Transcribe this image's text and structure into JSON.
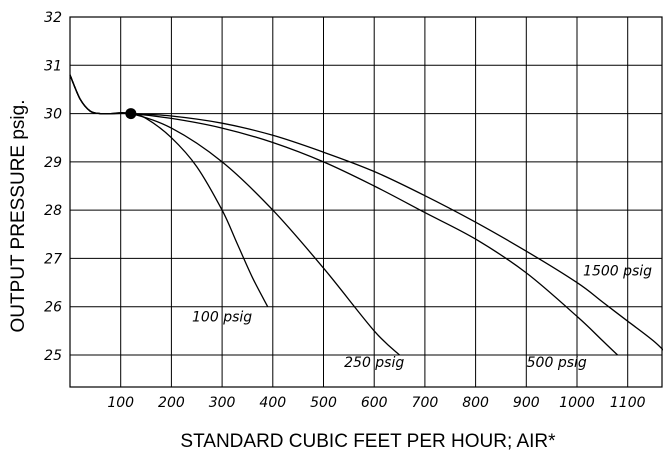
{
  "chart_data": {
    "type": "line",
    "title": "",
    "xlabel": "STANDARD CUBIC FEET PER HOUR; AIR*",
    "ylabel": "OUTPUT PRESSURE psig.",
    "xlim": [
      0,
      1200
    ],
    "ylim": [
      24.5,
      32
    ],
    "x_ticks": [
      "100",
      "200",
      "300",
      "400",
      "500",
      "600",
      "700",
      "800",
      "900",
      "1000",
      "1100"
    ],
    "y_ticks": [
      "25",
      "26",
      "27",
      "28",
      "29",
      "30",
      "31",
      "32"
    ],
    "grid": true,
    "set_point": {
      "x": 120,
      "y": 30
    },
    "series": [
      {
        "name": "100 psig",
        "x": [
          0,
          20,
          40,
          60,
          80,
          120,
          150,
          200,
          250,
          300,
          330,
          360,
          390
        ],
        "y": [
          30.8,
          30.3,
          30.05,
          30.0,
          30.0,
          30.0,
          29.9,
          29.5,
          28.9,
          28.0,
          27.3,
          26.6,
          26.0
        ]
      },
      {
        "name": "250 psig",
        "x": [
          0,
          20,
          40,
          60,
          80,
          120,
          200,
          300,
          400,
          500,
          600,
          650
        ],
        "y": [
          30.8,
          30.3,
          30.05,
          30.0,
          30.0,
          30.0,
          29.7,
          29.0,
          28.0,
          26.8,
          25.5,
          25.0
        ]
      },
      {
        "name": "500 psig",
        "x": [
          0,
          20,
          40,
          60,
          80,
          120,
          200,
          300,
          400,
          500,
          600,
          700,
          800,
          900,
          1000,
          1050,
          1080
        ],
        "y": [
          30.8,
          30.3,
          30.05,
          30.0,
          30.0,
          30.0,
          29.9,
          29.7,
          29.4,
          29.0,
          28.5,
          27.95,
          27.4,
          26.7,
          25.8,
          25.3,
          25.0
        ]
      },
      {
        "name": "1500 psig",
        "x": [
          0,
          20,
          40,
          60,
          80,
          120,
          200,
          300,
          400,
          500,
          600,
          700,
          800,
          900,
          1000,
          1050,
          1100,
          1150,
          1180
        ],
        "y": [
          30.8,
          30.3,
          30.05,
          30.0,
          30.0,
          30.0,
          29.95,
          29.8,
          29.55,
          29.2,
          28.8,
          28.3,
          27.75,
          27.15,
          26.5,
          26.1,
          25.7,
          25.3,
          25.0
        ]
      }
    ]
  }
}
